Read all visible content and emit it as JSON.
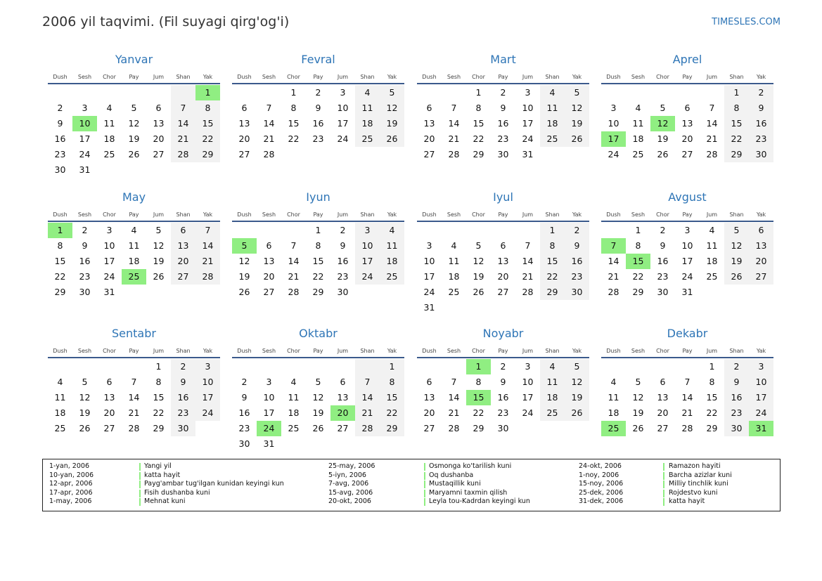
{
  "header": {
    "title": "2006 yil taqvimi. (Fil suyagi qirg'og'i)",
    "site": "TIMESLES.COM"
  },
  "weekdays": [
    "Dush",
    "Sesh",
    "Chor",
    "Pay",
    "Jum",
    "Shan",
    "Yak"
  ],
  "months": [
    {
      "name": "Yanvar",
      "days": [
        null,
        null,
        null,
        null,
        null,
        null,
        1,
        2,
        3,
        4,
        5,
        6,
        7,
        8,
        9,
        10,
        11,
        12,
        13,
        14,
        15,
        16,
        17,
        18,
        19,
        20,
        21,
        22,
        23,
        24,
        25,
        26,
        27,
        28,
        29,
        30,
        31
      ],
      "highlight": [
        1,
        10
      ]
    },
    {
      "name": "Fevral",
      "days": [
        null,
        null,
        1,
        2,
        3,
        4,
        5,
        6,
        7,
        8,
        9,
        10,
        11,
        12,
        13,
        14,
        15,
        16,
        17,
        18,
        19,
        20,
        21,
        22,
        23,
        24,
        25,
        26,
        27,
        28
      ],
      "highlight": []
    },
    {
      "name": "Mart",
      "days": [
        null,
        null,
        1,
        2,
        3,
        4,
        5,
        6,
        7,
        8,
        9,
        10,
        11,
        12,
        13,
        14,
        15,
        16,
        17,
        18,
        19,
        20,
        21,
        22,
        23,
        24,
        25,
        26,
        27,
        28,
        29,
        30,
        31
      ],
      "highlight": []
    },
    {
      "name": "Aprel",
      "days": [
        null,
        null,
        null,
        null,
        null,
        1,
        2,
        3,
        4,
        5,
        6,
        7,
        8,
        9,
        10,
        11,
        12,
        13,
        14,
        15,
        16,
        17,
        18,
        19,
        20,
        21,
        22,
        23,
        24,
        25,
        26,
        27,
        28,
        29,
        30
      ],
      "highlight": [
        12,
        17
      ]
    },
    {
      "name": "May",
      "days": [
        1,
        2,
        3,
        4,
        5,
        6,
        7,
        8,
        9,
        10,
        11,
        12,
        13,
        14,
        15,
        16,
        17,
        18,
        19,
        20,
        21,
        22,
        23,
        24,
        25,
        26,
        27,
        28,
        29,
        30,
        31
      ],
      "highlight": [
        1,
        25
      ]
    },
    {
      "name": "Iyun",
      "days": [
        null,
        null,
        null,
        1,
        2,
        3,
        4,
        5,
        6,
        7,
        8,
        9,
        10,
        11,
        12,
        13,
        14,
        15,
        16,
        17,
        18,
        19,
        20,
        21,
        22,
        23,
        24,
        25,
        26,
        27,
        28,
        29,
        30
      ],
      "highlight": [
        5
      ]
    },
    {
      "name": "Iyul",
      "days": [
        null,
        null,
        null,
        null,
        null,
        1,
        2,
        3,
        4,
        5,
        6,
        7,
        8,
        9,
        10,
        11,
        12,
        13,
        14,
        15,
        16,
        17,
        18,
        19,
        20,
        21,
        22,
        23,
        24,
        25,
        26,
        27,
        28,
        29,
        30,
        31
      ],
      "highlight": []
    },
    {
      "name": "Avgust",
      "days": [
        null,
        1,
        2,
        3,
        4,
        5,
        6,
        7,
        8,
        9,
        10,
        11,
        12,
        13,
        14,
        15,
        16,
        17,
        18,
        19,
        20,
        21,
        22,
        23,
        24,
        25,
        26,
        27,
        28,
        29,
        30,
        31
      ],
      "highlight": [
        7,
        15
      ]
    },
    {
      "name": "Sentabr",
      "days": [
        null,
        null,
        null,
        null,
        1,
        2,
        3,
        4,
        5,
        6,
        7,
        8,
        9,
        10,
        11,
        12,
        13,
        14,
        15,
        16,
        17,
        18,
        19,
        20,
        21,
        22,
        23,
        24,
        25,
        26,
        27,
        28,
        29,
        30
      ],
      "highlight": []
    },
    {
      "name": "Oktabr",
      "days": [
        null,
        null,
        null,
        null,
        null,
        null,
        1,
        2,
        3,
        4,
        5,
        6,
        7,
        8,
        9,
        10,
        11,
        12,
        13,
        14,
        15,
        16,
        17,
        18,
        19,
        20,
        21,
        22,
        23,
        24,
        25,
        26,
        27,
        28,
        29,
        30,
        31
      ],
      "highlight": [
        20,
        24
      ]
    },
    {
      "name": "Noyabr",
      "days": [
        null,
        null,
        1,
        2,
        3,
        4,
        5,
        6,
        7,
        8,
        9,
        10,
        11,
        12,
        13,
        14,
        15,
        16,
        17,
        18,
        19,
        20,
        21,
        22,
        23,
        24,
        25,
        26,
        27,
        28,
        29,
        30
      ],
      "highlight": [
        1,
        15
      ]
    },
    {
      "name": "Dekabr",
      "days": [
        null,
        null,
        null,
        null,
        1,
        2,
        3,
        4,
        5,
        6,
        7,
        8,
        9,
        10,
        11,
        12,
        13,
        14,
        15,
        16,
        17,
        18,
        19,
        20,
        21,
        22,
        23,
        24,
        25,
        26,
        27,
        28,
        29,
        30,
        31
      ],
      "highlight": [
        25,
        31
      ]
    }
  ],
  "holidays": [
    {
      "date": "1-yan, 2006",
      "name": "Yangi yil"
    },
    {
      "date": "10-yan, 2006",
      "name": "katta hayit"
    },
    {
      "date": "12-apr, 2006",
      "name": "Payg'ambar tug'ilgan kunidan keyingi kun"
    },
    {
      "date": "17-apr, 2006",
      "name": "Fisih dushanba kuni"
    },
    {
      "date": "1-may, 2006",
      "name": "Mehnat kuni"
    },
    {
      "date": "25-may, 2006",
      "name": "Osmonga ko'tarilish kuni"
    },
    {
      "date": "5-iyn, 2006",
      "name": "Oq dushanba"
    },
    {
      "date": "7-avg, 2006",
      "name": "Mustaqillik kuni"
    },
    {
      "date": "15-avg, 2006",
      "name": "Maryamni taxmin qilish"
    },
    {
      "date": "20-okt, 2006",
      "name": "Leyla tou-Kadrdan keyingi kun"
    },
    {
      "date": "24-okt, 2006",
      "name": "Ramazon hayiti"
    },
    {
      "date": "1-noy, 2006",
      "name": "Barcha azizlar kuni"
    },
    {
      "date": "15-noy, 2006",
      "name": "Milliy tinchlik kuni"
    },
    {
      "date": "25-dek, 2006",
      "name": "Rojdestvo kuni"
    },
    {
      "date": "31-dek, 2006",
      "name": "katta hayit"
    }
  ]
}
